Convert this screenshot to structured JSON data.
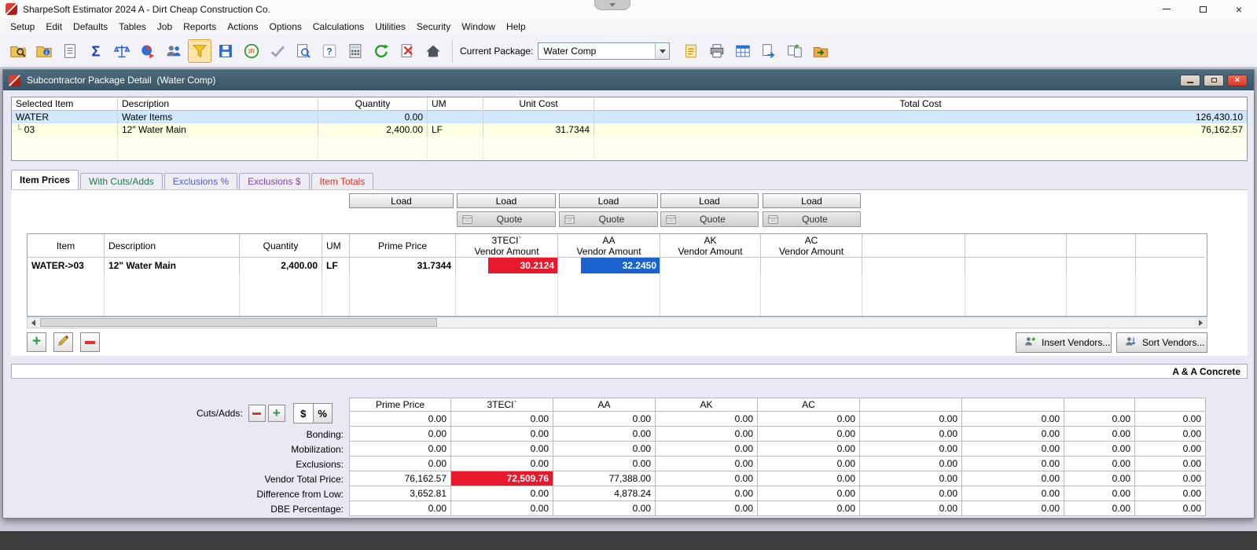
{
  "app": {
    "title": "SharpeSoft Estimator 2024 A - Dirt Cheap Construction Co.",
    "menu": [
      "Setup",
      "Edit",
      "Defaults",
      "Tables",
      "Job",
      "Reports",
      "Actions",
      "Options",
      "Calculations",
      "Utilities",
      "Security",
      "Window",
      "Help"
    ],
    "toolbar": {
      "current_package_label": "Current Package:",
      "current_package_value": "Water Comp",
      "icons_left": [
        {
          "name": "job-search-icon",
          "kind": "folder_search"
        },
        {
          "name": "job-info-icon",
          "kind": "folder_info"
        },
        {
          "name": "item-list-icon",
          "kind": "doc_list"
        },
        {
          "name": "summation-icon",
          "kind": "sigma"
        },
        {
          "name": "bid-compare-icon",
          "kind": "scales"
        },
        {
          "name": "allocation-icon",
          "kind": "pie_share"
        },
        {
          "name": "crew-icon",
          "kind": "crew"
        },
        {
          "name": "filter-icon",
          "kind": "funnel",
          "active": true
        },
        {
          "name": "save-layout-icon",
          "kind": "save_grid"
        },
        {
          "name": "instant-recalc-icon",
          "kind": "ir_badge"
        },
        {
          "name": "spellcheck-icon",
          "kind": "check"
        },
        {
          "name": "preview-icon",
          "kind": "doc_search"
        },
        {
          "name": "help-icon",
          "kind": "help"
        },
        {
          "name": "calculator-icon",
          "kind": "calc"
        },
        {
          "name": "refresh-icon",
          "kind": "refresh"
        },
        {
          "name": "close-job-icon",
          "kind": "doc_x"
        },
        {
          "name": "home-icon",
          "kind": "home"
        }
      ],
      "icons_right": [
        {
          "name": "notes-icon",
          "kind": "note"
        },
        {
          "name": "print-icon",
          "kind": "printer"
        },
        {
          "name": "grid-view-icon",
          "kind": "grid_blue"
        },
        {
          "name": "send-doc-icon",
          "kind": "send_doc"
        },
        {
          "name": "transfer-icon",
          "kind": "transfer"
        },
        {
          "name": "open-package-icon",
          "kind": "folder_out"
        }
      ]
    }
  },
  "detail_window": {
    "title": "Subcontractor Package Detail  (Water Comp)"
  },
  "items_table": {
    "columns": [
      "Selected Item",
      "Description",
      "Quantity",
      "UM",
      "Unit Cost",
      "Total Cost"
    ],
    "tree_glyph": "└",
    "rows": [
      {
        "item": "WATER",
        "description": "Water Items",
        "quantity": "0.00",
        "um": "",
        "unit_cost": "",
        "total_cost": "126,430.10"
      },
      {
        "item": "03",
        "description": "12\" Water Main",
        "quantity": "2,400.00",
        "um": "LF",
        "unit_cost": "31.7344",
        "total_cost": "76,162.57"
      }
    ]
  },
  "tabs": [
    {
      "label": "Item Prices",
      "active": true,
      "color": "#000000"
    },
    {
      "label": "With Cuts/Adds",
      "color": "#1e7a4f"
    },
    {
      "label": "Exclusions %",
      "color": "#4f5bd5"
    },
    {
      "label": "Exclusions $",
      "color": "#8a3fae"
    },
    {
      "label": "Item Totals",
      "color": "#e0301e"
    }
  ],
  "buttons": {
    "load": "Load",
    "quote": "Quote",
    "insert_vendors": "Insert Vendors...",
    "sort_vendors": "Sort Vendors..."
  },
  "price_table": {
    "headers": {
      "item": "Item",
      "description": "Description",
      "quantity": "Quantity",
      "um": "UM",
      "prime_price": "Prime Price",
      "vendor_sub": "Vendor Amount"
    },
    "vendors": [
      "3TECI`",
      "AA",
      "AK",
      "AC"
    ],
    "row": {
      "item": "WATER->03",
      "description": "12\" Water Main",
      "quantity": "2,400.00",
      "um": "LF",
      "prime_price": "31.7344",
      "vendor_amounts": [
        {
          "value": "30.2124",
          "highlight": "red"
        },
        {
          "value": "32.2450",
          "highlight": "blue"
        },
        {
          "value": ""
        },
        {
          "value": ""
        }
      ]
    }
  },
  "vendor_bar": {
    "text": "A & A Concrete"
  },
  "cuts": {
    "label": "Cuts/Adds:",
    "dollar": "$",
    "percent": "%"
  },
  "summary": {
    "col_headers": [
      "Prime Price",
      "3TECI`",
      "AA",
      "AK",
      "AC",
      "",
      "",
      "",
      ""
    ],
    "rows": [
      {
        "label": "",
        "values": [
          "0.00",
          "0.00",
          "0.00",
          "0.00",
          "0.00",
          "0.00",
          "0.00",
          "0.00",
          "0.00"
        ]
      },
      {
        "label": "Bonding:",
        "values": [
          "0.00",
          "0.00",
          "0.00",
          "0.00",
          "0.00",
          "0.00",
          "0.00",
          "0.00",
          "0.00"
        ]
      },
      {
        "label": "Mobilization:",
        "values": [
          "0.00",
          "0.00",
          "0.00",
          "0.00",
          "0.00",
          "0.00",
          "0.00",
          "0.00",
          "0.00"
        ]
      },
      {
        "label": "Exclusions:",
        "values": [
          "0.00",
          "0.00",
          "0.00",
          "0.00",
          "0.00",
          "0.00",
          "0.00",
          "0.00",
          "0.00"
        ]
      },
      {
        "label": "Vendor Total Price:",
        "values": [
          "76,162.57",
          "72,509.76",
          "77,388.00",
          "0.00",
          "0.00",
          "0.00",
          "0.00",
          "0.00",
          "0.00"
        ],
        "highlight": {
          "1": "red"
        }
      },
      {
        "label": "Difference from Low:",
        "values": [
          "3,652.81",
          "0.00",
          "4,878.24",
          "0.00",
          "0.00",
          "0.00",
          "0.00",
          "0.00",
          "0.00"
        ]
      },
      {
        "label": "DBE Percentage:",
        "values": [
          "0.00",
          "0.00",
          "0.00",
          "0.00",
          "0.00",
          "0.00",
          "0.00",
          "0.00",
          "0.00"
        ]
      }
    ]
  }
}
